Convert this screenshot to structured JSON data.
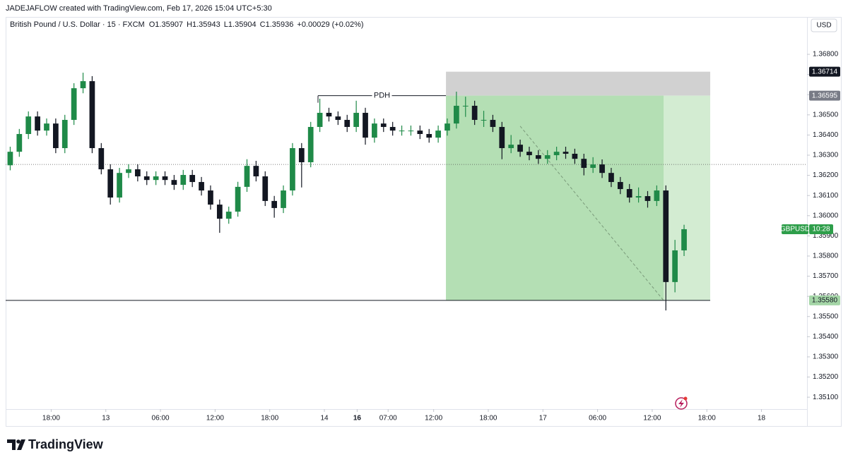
{
  "header": {
    "credit": "JADEJAFLOW created with TradingView.com, Feb 17, 2026 15:04 UTC+5:30",
    "branding": "TradingView"
  },
  "chart_data": {
    "type": "candlestick",
    "title": "British Pound / U.S. Dollar · 15 · FXCM",
    "ohlc": [
      "O1.35907",
      "H1.35943",
      "L1.35904",
      "C1.35936",
      "+0.00029 (+0.02%)"
    ],
    "currency": "USD",
    "symbol": "GBPUSD",
    "countdown": "10:28",
    "annotation": "PDH",
    "up_color": "#1f8a48",
    "down_color": "#131722",
    "xlim": [
      0,
      88
    ],
    "ylim": [
      1.35041,
      1.36982
    ],
    "xticks": [
      {
        "value": 5,
        "label": "18:00"
      },
      {
        "value": 11,
        "label": "13"
      },
      {
        "value": 17,
        "label": "06:00"
      },
      {
        "value": 23,
        "label": "12:00"
      },
      {
        "value": 29,
        "label": "18:00"
      },
      {
        "value": 35,
        "label": "14"
      },
      {
        "value": 38.6,
        "label": "16"
      },
      {
        "value": 42,
        "label": "07:00"
      },
      {
        "value": 47,
        "label": "12:00"
      },
      {
        "value": 53,
        "label": "18:00"
      },
      {
        "value": 59,
        "label": "17"
      },
      {
        "value": 65,
        "label": "06:00"
      },
      {
        "value": 71,
        "label": "12:00"
      },
      {
        "value": 77,
        "label": "18:00"
      },
      {
        "value": 83,
        "label": "18"
      }
    ],
    "yticks": [
      {
        "value": 1.351,
        "label": "1.35100"
      },
      {
        "value": 1.352,
        "label": "1.35200"
      },
      {
        "value": 1.353,
        "label": "1.35300"
      },
      {
        "value": 1.354,
        "label": "1.35400"
      },
      {
        "value": 1.355,
        "label": "1.35500"
      },
      {
        "value": 1.356,
        "label": "1.35600"
      },
      {
        "value": 1.357,
        "label": "1.35700"
      },
      {
        "value": 1.358,
        "label": "1.35800"
      },
      {
        "value": 1.359,
        "label": "1.35900"
      },
      {
        "value": 1.36,
        "label": "1.36000"
      },
      {
        "value": 1.361,
        "label": "1.36100"
      },
      {
        "value": 1.362,
        "label": "1.36200"
      },
      {
        "value": 1.363,
        "label": "1.36300"
      },
      {
        "value": 1.364,
        "label": "1.36400"
      },
      {
        "value": 1.365,
        "label": "1.36500"
      },
      {
        "value": 1.366,
        "label": "1.36600"
      },
      {
        "value": 1.367,
        "label": "1.36700"
      },
      {
        "value": 1.368,
        "label": "1.36800"
      }
    ],
    "stop_level": 1.36714,
    "entry_level": 1.36595,
    "target_level": {
      "value": 1.3558,
      "label": "1.35580"
    },
    "reference_level": 1.36254,
    "x": [
      0.5,
      1.5,
      2.5,
      3.5,
      4.5,
      5.5,
      6.5,
      7.5,
      8.5,
      9.5,
      10.5,
      11.5,
      12.5,
      13.5,
      14.5,
      15.5,
      16.5,
      17.5,
      18.5,
      19.5,
      20.5,
      21.5,
      22.5,
      23.5,
      24.5,
      25.5,
      26.5,
      27.5,
      28.5,
      29.5,
      30.5,
      31.5,
      32.5,
      33.5,
      34.5,
      35.5,
      36.5,
      37.5,
      38.5,
      39.5,
      40.5,
      41.5,
      42.5,
      43.5,
      44.5,
      45.5,
      46.5,
      47.5,
      48.5,
      49.5,
      50.5,
      51.5,
      52.5,
      53.5,
      54.5,
      55.5,
      56.5,
      57.5,
      58.5,
      59.5,
      60.5,
      61.5,
      62.5,
      63.5,
      64.5,
      65.5,
      66.5,
      67.5,
      68.5,
      69.5,
      70.5,
      71.5,
      72.5,
      73.5,
      74.5
    ],
    "series": [
      {
        "open": [
          1.3625,
          1.36317,
          1.36405,
          1.36492,
          1.36422,
          1.36457,
          1.36335,
          1.36475,
          1.36632,
          1.36667,
          1.36335,
          1.3623,
          1.3609,
          1.36212,
          1.3623,
          1.36195,
          1.36177,
          1.36195,
          1.36177,
          1.36153,
          1.36202,
          1.36167,
          1.36125,
          1.36055,
          1.35985,
          1.3602,
          1.36143,
          1.36247,
          1.36195,
          1.36073,
          1.36038,
          1.36125,
          1.36335,
          1.36265,
          1.3644,
          1.3651,
          1.36492,
          1.36475,
          1.3644,
          1.3651,
          1.36387,
          1.36457,
          1.3644,
          1.36422,
          1.36422,
          1.36422,
          1.36405,
          1.36387,
          1.36422,
          1.36457,
          1.36545,
          1.36545,
          1.36475,
          1.36475,
          1.3644,
          1.36335,
          1.36352,
          1.36317,
          1.363,
          1.36282,
          1.363,
          1.36317,
          1.36307,
          1.36282,
          1.36237,
          1.36254,
          1.36212,
          1.36167,
          1.36132,
          1.3609,
          1.36097,
          1.36073,
          1.36125,
          1.35671,
          1.35828
        ],
        "high": [
          1.36342,
          1.3643,
          1.36517,
          1.36517,
          1.36482,
          1.36482,
          1.365,
          1.36657,
          1.36709,
          1.36692,
          1.3636,
          1.36255,
          1.36237,
          1.36255,
          1.36255,
          1.3622,
          1.3622,
          1.3622,
          1.36202,
          1.36227,
          1.36227,
          1.36192,
          1.3615,
          1.3608,
          1.36045,
          1.36168,
          1.3628,
          1.36272,
          1.3622,
          1.36098,
          1.3615,
          1.3636,
          1.3636,
          1.36465,
          1.3658,
          1.36535,
          1.36517,
          1.365,
          1.3657,
          1.36535,
          1.36482,
          1.36482,
          1.36465,
          1.36447,
          1.36447,
          1.36447,
          1.3643,
          1.36447,
          1.36482,
          1.36615,
          1.3659,
          1.3657,
          1.3652,
          1.365,
          1.36465,
          1.364,
          1.36377,
          1.36342,
          1.36325,
          1.36325,
          1.36342,
          1.36342,
          1.36332,
          1.36307,
          1.3629,
          1.36279,
          1.36237,
          1.36192,
          1.36157,
          1.3614,
          1.36122,
          1.3615,
          1.3615,
          1.3588,
          1.35955
        ],
        "low": [
          1.36225,
          1.36292,
          1.3638,
          1.36397,
          1.36397,
          1.3631,
          1.3631,
          1.3645,
          1.36607,
          1.3631,
          1.36205,
          1.36055,
          1.36065,
          1.36187,
          1.3617,
          1.36152,
          1.36152,
          1.36152,
          1.36128,
          1.36128,
          1.36142,
          1.361,
          1.3603,
          1.35915,
          1.3596,
          1.35995,
          1.36118,
          1.3617,
          1.36048,
          1.3599,
          1.36013,
          1.361,
          1.3614,
          1.3624,
          1.36415,
          1.36467,
          1.3645,
          1.36415,
          1.36415,
          1.36352,
          1.36362,
          1.36415,
          1.36397,
          1.36397,
          1.36397,
          1.3638,
          1.36362,
          1.36362,
          1.36397,
          1.36432,
          1.3649,
          1.3645,
          1.3644,
          1.36415,
          1.3628,
          1.3631,
          1.36292,
          1.36275,
          1.36257,
          1.36257,
          1.36275,
          1.36282,
          1.36257,
          1.362,
          1.36212,
          1.36187,
          1.36142,
          1.36107,
          1.36065,
          1.36065,
          1.3604,
          1.36048,
          1.3553,
          1.3562,
          1.358
        ],
        "close": [
          1.36317,
          1.36405,
          1.36492,
          1.36422,
          1.36457,
          1.36335,
          1.36475,
          1.36632,
          1.36667,
          1.36335,
          1.3623,
          1.3609,
          1.36212,
          1.3623,
          1.36195,
          1.36177,
          1.36195,
          1.36177,
          1.36153,
          1.36202,
          1.36167,
          1.36125,
          1.36055,
          1.35985,
          1.3602,
          1.36143,
          1.36247,
          1.36195,
          1.36073,
          1.36038,
          1.36125,
          1.36335,
          1.36265,
          1.3644,
          1.3651,
          1.36492,
          1.36475,
          1.3644,
          1.3651,
          1.36387,
          1.36457,
          1.3644,
          1.36422,
          1.36422,
          1.36422,
          1.36405,
          1.36387,
          1.36422,
          1.36457,
          1.36545,
          1.36545,
          1.36475,
          1.36475,
          1.3644,
          1.36335,
          1.36352,
          1.36317,
          1.363,
          1.36282,
          1.363,
          1.36317,
          1.36307,
          1.36282,
          1.36237,
          1.36254,
          1.36212,
          1.36167,
          1.36132,
          1.3609,
          1.36097,
          1.36073,
          1.36125,
          1.35671,
          1.35828,
          1.35933
        ]
      }
    ]
  }
}
